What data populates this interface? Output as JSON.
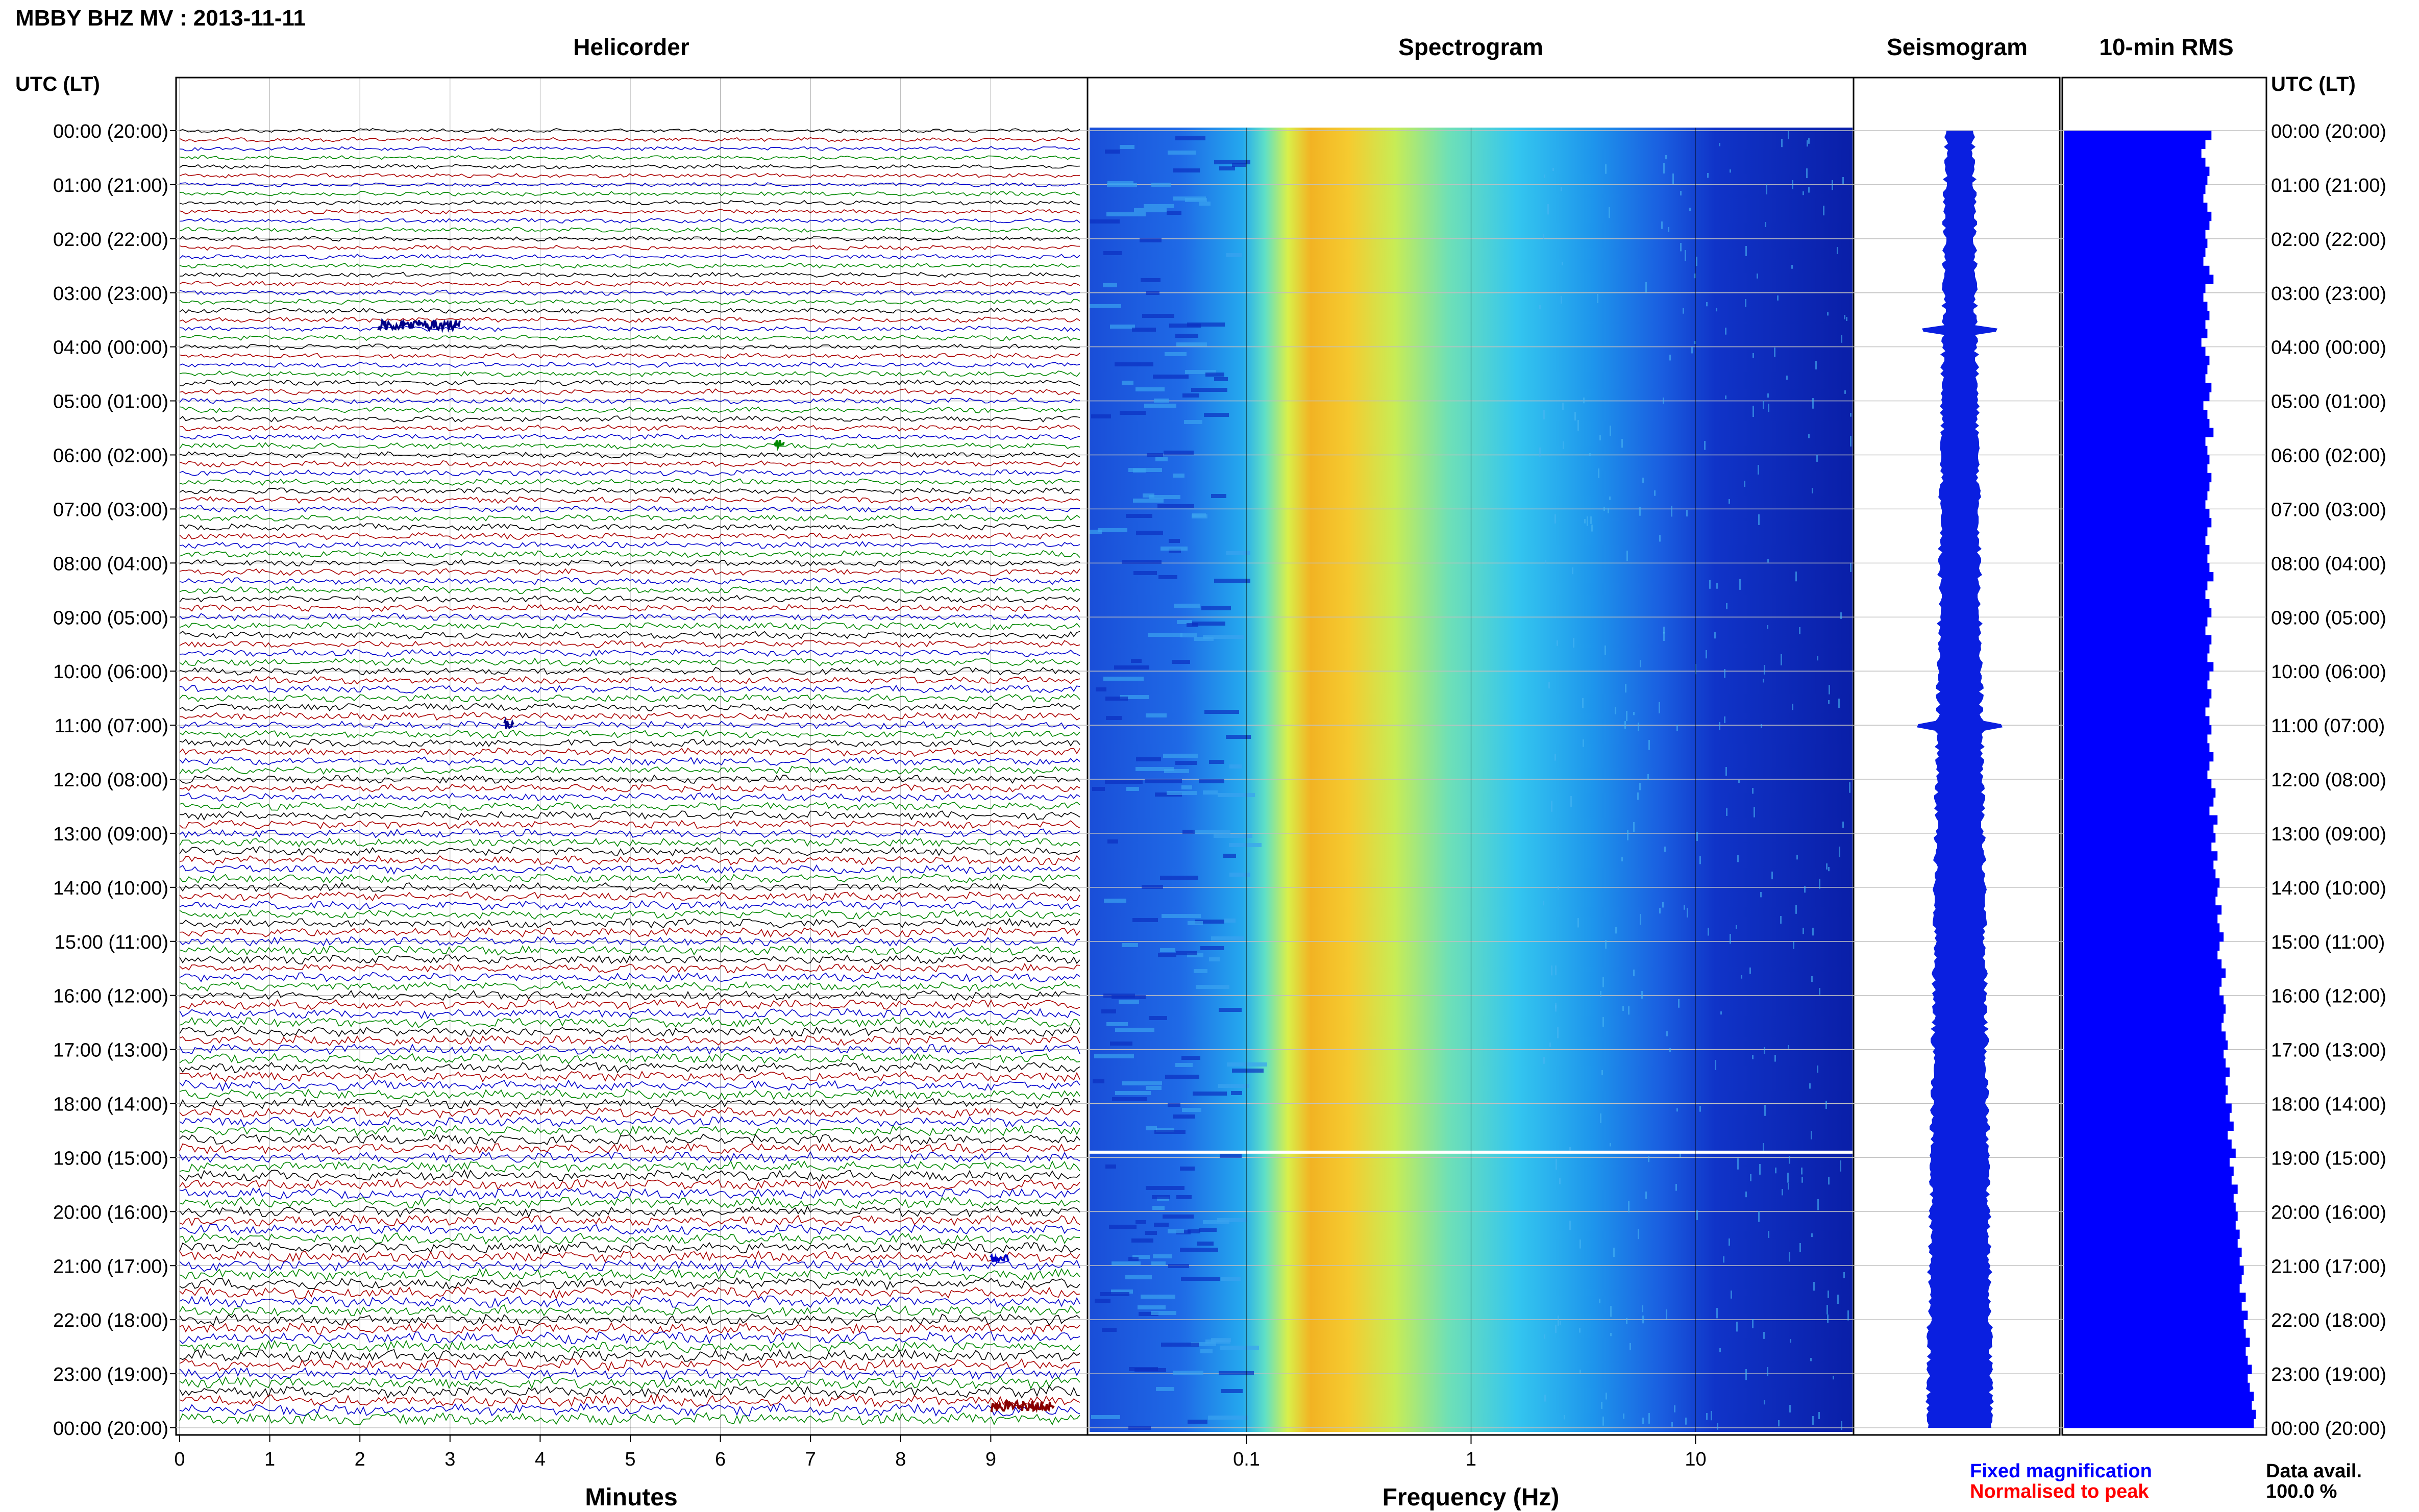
{
  "page_title": "MBBY BHZ MV : 2013-11-11",
  "panels": {
    "helicorder": "Helicorder",
    "spectrogram": "Spectrogram",
    "seismogram": "Seismogram",
    "rms": "10-min RMS"
  },
  "axis_headers": {
    "left": "UTC (LT)",
    "right": "UTC (LT)"
  },
  "time_labels": [
    "00:00 (20:00)",
    "01:00 (21:00)",
    "02:00 (22:00)",
    "03:00 (23:00)",
    "04:00 (00:00)",
    "05:00 (01:00)",
    "06:00 (02:00)",
    "07:00 (03:00)",
    "08:00 (04:00)",
    "09:00 (05:00)",
    "10:00 (06:00)",
    "11:00 (07:00)",
    "12:00 (08:00)",
    "13:00 (09:00)",
    "14:00 (10:00)",
    "15:00 (11:00)",
    "16:00 (12:00)",
    "17:00 (13:00)",
    "18:00 (14:00)",
    "19:00 (15:00)",
    "20:00 (16:00)",
    "21:00 (17:00)",
    "22:00 (18:00)",
    "23:00 (19:00)",
    "00:00 (20:00)"
  ],
  "legend": {
    "fixed": "Fixed magnification",
    "normalised": "Normalised to peak",
    "fixed_color": "#0000ff",
    "normalised_color": "#ff0000"
  },
  "data_avail": {
    "label": "Data avail.",
    "value": "100.0 %"
  },
  "chart_data": [
    {
      "type": "line",
      "title": "Helicorder",
      "xlabel": "Minutes",
      "x_ticks": [
        "0",
        "1",
        "2",
        "3",
        "4",
        "5",
        "6",
        "7",
        "8",
        "9"
      ],
      "xlim": [
        0,
        10
      ],
      "lines_per_hour": 6,
      "hours": 24,
      "line_colors": [
        "#000000",
        "#aa0000",
        "#0000cc",
        "#008800"
      ],
      "events": [
        {
          "hour": 3.6,
          "minute": 2.2,
          "duration_min": 0.9,
          "color": "#000088"
        },
        {
          "hour": 5.8,
          "minute": 6.6,
          "duration_min": 0.1,
          "color": "#008800"
        },
        {
          "hour": 11.0,
          "minute": 3.6,
          "duration_min": 0.1,
          "color": "#000088"
        },
        {
          "hour": 20.9,
          "minute": 9.0,
          "duration_min": 0.2,
          "color": "#0000cc"
        },
        {
          "hour": 23.6,
          "minute": 9.0,
          "duration_min": 0.7,
          "color": "#880000"
        }
      ]
    },
    {
      "type": "heatmap",
      "title": "Spectrogram",
      "xlabel": "Frequency (Hz)",
      "x_scale": "log",
      "x_ticks": [
        "0.1",
        "1",
        "10"
      ],
      "xlim": [
        0.02,
        50
      ],
      "peak_frequency_hz": 0.3,
      "gap_hour": 18.9
    },
    {
      "type": "area",
      "title": "Seismogram",
      "spike_hours": [
        3.7,
        11.0
      ]
    },
    {
      "type": "bar",
      "title": "10-min RMS",
      "bin_minutes": 10,
      "color": "#0000ff",
      "relative_values": [
        0.73,
        0.7,
        0.68,
        0.7,
        0.72,
        0.71,
        0.7,
        0.69,
        0.71,
        0.73,
        0.72,
        0.7,
        0.71,
        0.7,
        0.69,
        0.72,
        0.74,
        0.7,
        0.69,
        0.71,
        0.72,
        0.7,
        0.71,
        0.68,
        0.7,
        0.72,
        0.71,
        0.7,
        0.73,
        0.72,
        0.69,
        0.71,
        0.72,
        0.74,
        0.7,
        0.71,
        0.72,
        0.71,
        0.73,
        0.72,
        0.71,
        0.7,
        0.72,
        0.73,
        0.71,
        0.7,
        0.72,
        0.71,
        0.72,
        0.74,
        0.71,
        0.7,
        0.72,
        0.73,
        0.71,
        0.7,
        0.73,
        0.72,
        0.71,
        0.74,
        0.72,
        0.71,
        0.73,
        0.72,
        0.7,
        0.72,
        0.73,
        0.71,
        0.72,
        0.74,
        0.72,
        0.71,
        0.73,
        0.75,
        0.74,
        0.72,
        0.76,
        0.74,
        0.75,
        0.73,
        0.76,
        0.74,
        0.75,
        0.77,
        0.76,
        0.75,
        0.78,
        0.76,
        0.77,
        0.79,
        0.77,
        0.76,
        0.78,
        0.8,
        0.78,
        0.77,
        0.79,
        0.8,
        0.79,
        0.78,
        0.8,
        0.81,
        0.79,
        0.8,
        0.82,
        0.8,
        0.81,
        0.8,
        0.83,
        0.82,
        0.84,
        0.81,
        0.83,
        0.85,
        0.82,
        0.84,
        0.83,
        0.86,
        0.84,
        0.85,
        0.86,
        0.85,
        0.87,
        0.86,
        0.88,
        0.87,
        0.89,
        0.88,
        0.87,
        0.9,
        0.88,
        0.91,
        0.89,
        0.9,
        0.92,
        0.9,
        0.91,
        0.93,
        0.91,
        0.92,
        0.94,
        0.93,
        0.95,
        0.94
      ]
    }
  ]
}
